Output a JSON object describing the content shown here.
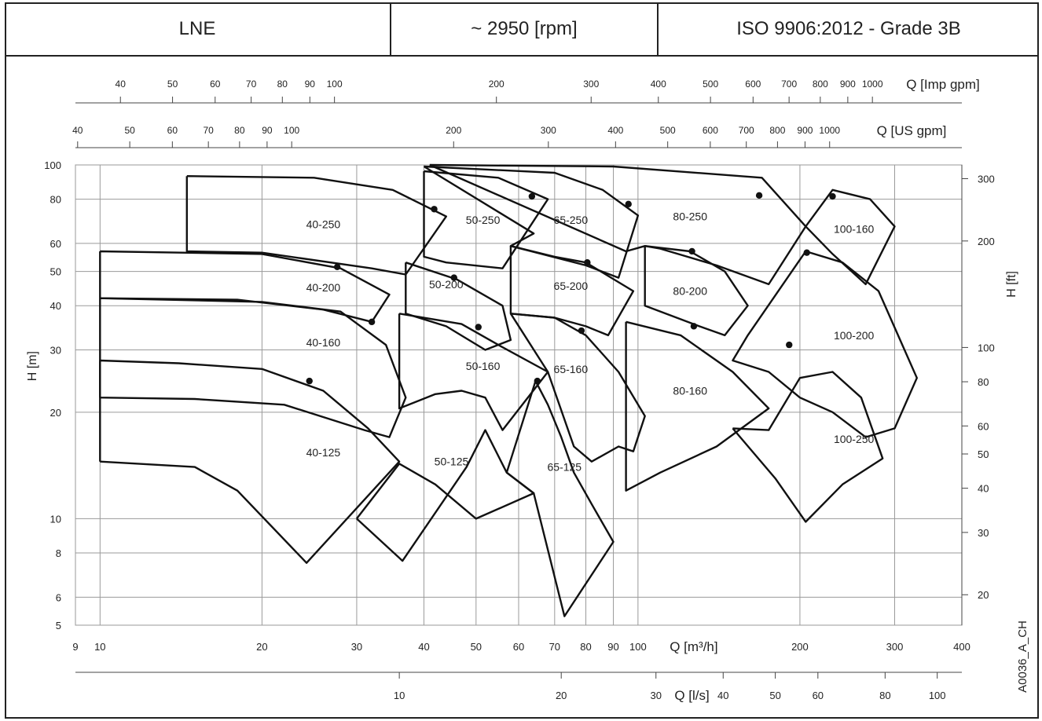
{
  "header": {
    "series": "LNE",
    "speed": "~ 2950 [rpm]",
    "standard": "ISO 9906:2012 - Grade 3B"
  },
  "doc_code": "A0036_A_CH",
  "chart_data": {
    "type": "line",
    "x_scale": "log",
    "y_scale": "log",
    "xlabel": "Q [m³/h]",
    "ylabel": "H [m]",
    "xlim": [
      9,
      400
    ],
    "ylim": [
      5,
      100
    ],
    "x_ticks": [
      9,
      10,
      20,
      30,
      40,
      50,
      60,
      70,
      80,
      90,
      100,
      200,
      300,
      400
    ],
    "y_ticks": [
      5,
      6,
      8,
      10,
      20,
      30,
      40,
      50,
      60,
      80,
      100
    ],
    "grid": true,
    "secondary_axes": {
      "imp_gpm": {
        "label": "Q [Imp gpm]",
        "ticks": [
          40,
          50,
          60,
          70,
          80,
          90,
          100,
          200,
          300,
          400,
          500,
          600,
          700,
          800,
          900,
          1000
        ]
      },
      "us_gpm": {
        "label": "Q [US gpm]",
        "ticks": [
          40,
          50,
          60,
          70,
          80,
          90,
          100,
          200,
          300,
          400,
          500,
          600,
          700,
          800,
          900,
          1000
        ]
      },
      "lps": {
        "label": "Q [l/s]",
        "ticks": [
          10,
          20,
          30,
          40,
          50,
          60,
          80,
          100
        ]
      },
      "ft": {
        "label": "H [ft]",
        "ticks": [
          20,
          30,
          40,
          50,
          60,
          80,
          100,
          200,
          300
        ]
      }
    },
    "pumps": [
      {
        "name": "40-125",
        "label_at": [
          26,
          15.4
        ],
        "poly": [
          [
            10,
            14.5
          ],
          [
            15,
            14
          ],
          [
            18,
            12
          ],
          [
            24.2,
            7.5
          ],
          [
            36,
            14.5
          ],
          [
            31.5,
            18
          ],
          [
            26,
            23
          ],
          [
            20,
            26.5
          ],
          [
            14,
            27.5
          ],
          [
            10,
            28
          ],
          [
            10,
            14.5
          ]
        ],
        "bep": [
          24.5,
          24.5
        ]
      },
      {
        "name": "40-160",
        "label_at": [
          26,
          31.5
        ],
        "poly": [
          [
            10,
            42
          ],
          [
            20,
            41
          ],
          [
            28,
            38.5
          ],
          [
            34,
            31
          ],
          [
            37,
            22
          ],
          [
            34.5,
            17
          ],
          [
            31,
            17.8
          ],
          [
            22,
            21
          ],
          [
            15,
            21.8
          ],
          [
            10,
            22
          ],
          [
            10,
            42
          ]
        ],
        "bep": [
          32,
          36
        ]
      },
      {
        "name": "40-200",
        "label_at": [
          26,
          45
        ],
        "poly": [
          [
            10,
            57
          ],
          [
            20,
            56
          ],
          [
            28,
            51
          ],
          [
            34.5,
            43
          ],
          [
            32,
            36
          ],
          [
            26,
            39
          ],
          [
            18,
            41.6
          ],
          [
            10,
            42
          ],
          [
            10,
            57
          ]
        ],
        "bep": [
          27.6,
          51.5
        ]
      },
      {
        "name": "40-250",
        "label_at": [
          26,
          68
        ],
        "poly": [
          [
            14.5,
            93
          ],
          [
            25,
            92
          ],
          [
            35,
            85
          ],
          [
            44,
            71.5
          ],
          [
            37,
            49
          ],
          [
            32,
            51
          ],
          [
            20,
            56.5
          ],
          [
            14.5,
            57
          ],
          [
            14.5,
            93
          ]
        ],
        "bep": [
          41.8,
          75
        ]
      },
      {
        "name": "50-125",
        "label_at": [
          45,
          14.5
        ],
        "poly": [
          [
            30,
            10
          ],
          [
            36.5,
            7.6
          ],
          [
            48,
            14
          ],
          [
            52,
            17.8
          ],
          [
            57,
            13.5
          ],
          [
            64,
            11.8
          ],
          [
            50,
            10
          ],
          [
            42,
            12.5
          ],
          [
            36,
            14.3
          ],
          [
            30,
            10
          ]
        ],
        "bep": null
      },
      {
        "name": "50-160",
        "label_at": [
          51.5,
          27
        ],
        "poly": [
          [
            36,
            38
          ],
          [
            47,
            35.5
          ],
          [
            55,
            31
          ],
          [
            68,
            26
          ],
          [
            56,
            17.8
          ],
          [
            52,
            22
          ],
          [
            47,
            23
          ],
          [
            42,
            22.5
          ],
          [
            36,
            20.5
          ],
          [
            36,
            38
          ]
        ],
        "bep": [
          50.5,
          34.8
        ]
      },
      {
        "name": "50-200",
        "label_at": [
          44,
          46
        ],
        "poly": [
          [
            37,
            53
          ],
          [
            46,
            47.5
          ],
          [
            56,
            40
          ],
          [
            58,
            32
          ],
          [
            52,
            30
          ],
          [
            44,
            35
          ],
          [
            37,
            38
          ],
          [
            37,
            53
          ]
        ],
        "bep": [
          45.5,
          48
        ]
      },
      {
        "name": "50-250",
        "label_at": [
          51.5,
          70
        ],
        "poly": [
          [
            40,
            96
          ],
          [
            55,
            92
          ],
          [
            68,
            80
          ],
          [
            56,
            51
          ],
          [
            44,
            53
          ],
          [
            40,
            55
          ],
          [
            40,
            96
          ]
        ],
        "bep": [
          63.5,
          81.5
        ]
      },
      {
        "name": "65-125",
        "label_at": [
          73,
          14
        ],
        "poly": [
          [
            57,
            13.5
          ],
          [
            64,
            11.8
          ],
          [
            73,
            5.3
          ],
          [
            90,
            8.6
          ],
          [
            82,
            11
          ],
          [
            76,
            13.5
          ],
          [
            72,
            17
          ],
          [
            68,
            21
          ],
          [
            64.5,
            24.5
          ],
          [
            57,
            13.5
          ]
        ],
        "bep": [
          65,
          24.5
        ]
      },
      {
        "name": "65-160",
        "label_at": [
          75,
          26.5
        ],
        "poly": [
          [
            58,
            38
          ],
          [
            70,
            37
          ],
          [
            80,
            33
          ],
          [
            92,
            26
          ],
          [
            103,
            19.5
          ],
          [
            98,
            15.5
          ],
          [
            92,
            16
          ],
          [
            82,
            14.5
          ],
          [
            76,
            16
          ],
          [
            68,
            26
          ],
          [
            58,
            38
          ]
        ],
        "bep": [
          78.5,
          34
        ]
      },
      {
        "name": "65-200",
        "label_at": [
          75,
          45.5
        ],
        "poly": [
          [
            58,
            59
          ],
          [
            70,
            55
          ],
          [
            80,
            53
          ],
          [
            98,
            44
          ],
          [
            88,
            33
          ],
          [
            80,
            35
          ],
          [
            70,
            37
          ],
          [
            58,
            38
          ],
          [
            58,
            59
          ]
        ],
        "bep": [
          80.5,
          53
        ]
      },
      {
        "name": "65-250",
        "label_at": [
          75,
          70
        ],
        "poly": [
          [
            40,
            99
          ],
          [
            70,
            95
          ],
          [
            86,
            85
          ],
          [
            100,
            72
          ],
          [
            92,
            48
          ],
          [
            80,
            52
          ],
          [
            58,
            59
          ],
          [
            64,
            64
          ],
          [
            40,
            99
          ]
        ],
        "bep": [
          96,
          77.5
        ]
      },
      {
        "name": "80-160",
        "label_at": [
          125,
          23
        ],
        "poly": [
          [
            95,
            36
          ],
          [
            120,
            33
          ],
          [
            150,
            26
          ],
          [
            175,
            20.5
          ],
          [
            140,
            16
          ],
          [
            110,
            13.5
          ],
          [
            95,
            12
          ],
          [
            95,
            36
          ]
        ],
        "bep": [
          127,
          35
        ]
      },
      {
        "name": "80-200",
        "label_at": [
          125,
          44
        ],
        "poly": [
          [
            103,
            59
          ],
          [
            125,
            57
          ],
          [
            145,
            50
          ],
          [
            160,
            40
          ],
          [
            145,
            33
          ],
          [
            130,
            35
          ],
          [
            103,
            40
          ],
          [
            103,
            59
          ]
        ],
        "bep": [
          126,
          57
        ]
      },
      {
        "name": "80-250",
        "label_at": [
          125,
          71.5
        ],
        "poly": [
          [
            41,
            100
          ],
          [
            90,
            99
          ],
          [
            170,
            92
          ],
          [
            205,
            67
          ],
          [
            175,
            46
          ],
          [
            140,
            52
          ],
          [
            110,
            58
          ],
          [
            103,
            59
          ],
          [
            95,
            57
          ],
          [
            41,
            100
          ]
        ],
        "bep": [
          168,
          82
        ]
      },
      {
        "name": "100-160",
        "label_at": [
          252,
          66
        ],
        "poly": [
          [
            205,
            67
          ],
          [
            230,
            85
          ],
          [
            270,
            80
          ],
          [
            300,
            67
          ],
          [
            265,
            46
          ],
          [
            230,
            56
          ],
          [
            205,
            67
          ]
        ],
        "bep": [
          230,
          81.5
        ]
      },
      {
        "name": "100-200",
        "label_at": [
          252,
          33
        ],
        "poly": [
          [
            205,
            57
          ],
          [
            240,
            53
          ],
          [
            280,
            44
          ],
          [
            330,
            25
          ],
          [
            300,
            18
          ],
          [
            265,
            17
          ],
          [
            230,
            20
          ],
          [
            200,
            22
          ],
          [
            175,
            26
          ],
          [
            150,
            28
          ],
          [
            160,
            33
          ],
          [
            205,
            57
          ]
        ],
        "bep": [
          206,
          56.5
        ]
      },
      {
        "name": "100-250",
        "label_at": [
          252,
          16.8
        ],
        "poly": [
          [
            150,
            18
          ],
          [
            175,
            17.8
          ],
          [
            200,
            25
          ],
          [
            230,
            26
          ],
          [
            260,
            22
          ],
          [
            285,
            14.8
          ],
          [
            240,
            12.5
          ],
          [
            205,
            9.8
          ],
          [
            180,
            13
          ],
          [
            150,
            18
          ]
        ],
        "bep": [
          191,
          31
        ]
      }
    ]
  }
}
